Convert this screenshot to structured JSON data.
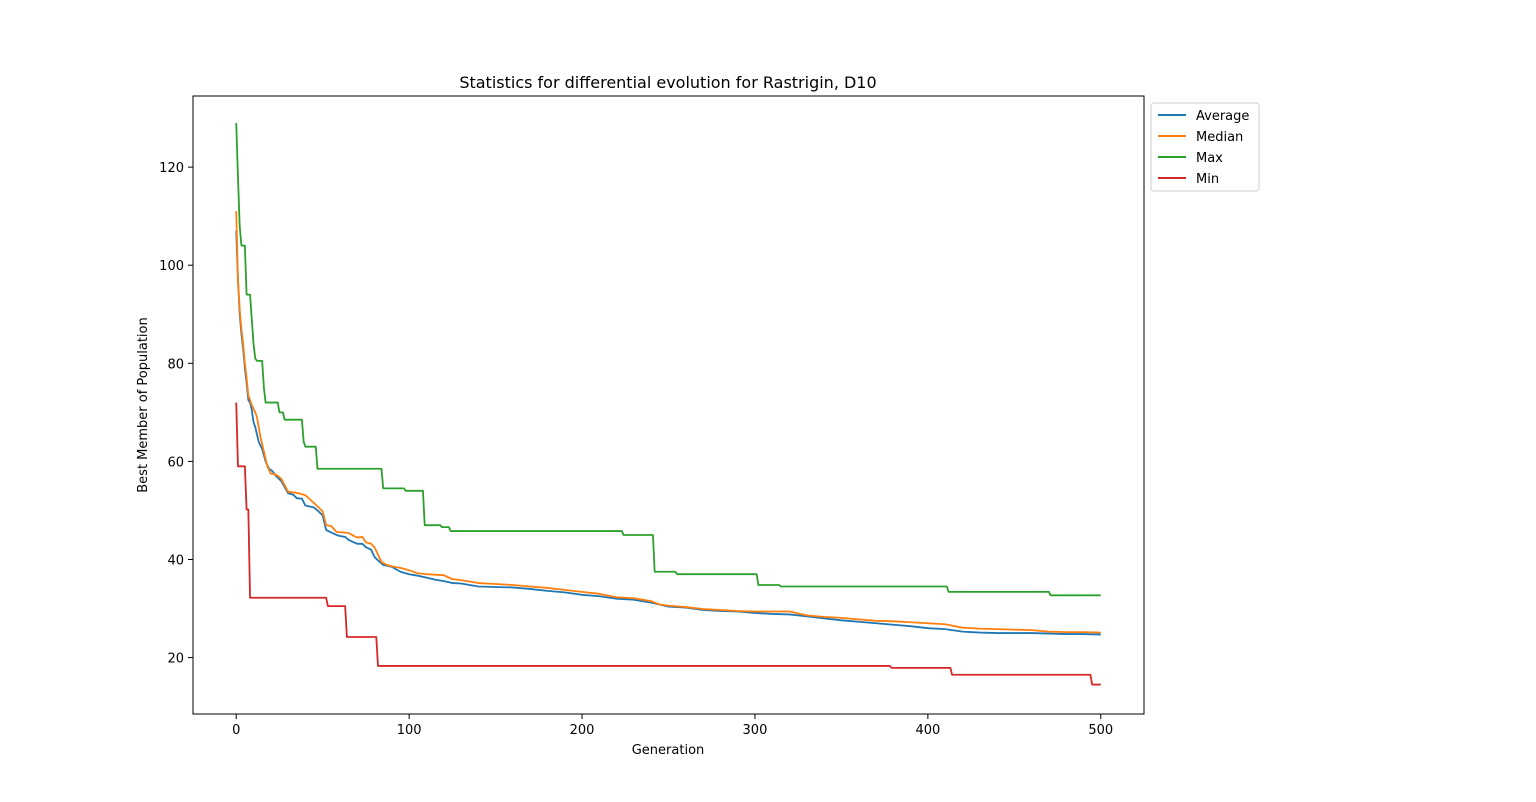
{
  "chart_data": {
    "type": "line",
    "title": "Statistics for differential evolution for Rastrigin, D10",
    "xlabel": "Generation",
    "ylabel": "Best Member of Population",
    "xlim": [
      -25,
      525
    ],
    "ylim": [
      8.5,
      134.5
    ],
    "xticks": [
      0,
      100,
      200,
      300,
      400,
      500
    ],
    "yticks": [
      20,
      40,
      60,
      80,
      100,
      120
    ],
    "grid": false,
    "legend_position": "outside upper right",
    "series": [
      {
        "name": "Average",
        "color": "#1f77b4",
        "points": [
          [
            0,
            107
          ],
          [
            1,
            97
          ],
          [
            2,
            90
          ],
          [
            3,
            86
          ],
          [
            4,
            83
          ],
          [
            5,
            79
          ],
          [
            6,
            76
          ],
          [
            7,
            72.5
          ],
          [
            8,
            72
          ],
          [
            9,
            70.5
          ],
          [
            10,
            68
          ],
          [
            11,
            67
          ],
          [
            13,
            64
          ],
          [
            15,
            62.5
          ],
          [
            17,
            60
          ],
          [
            19,
            58.5
          ],
          [
            21,
            58
          ],
          [
            23,
            57
          ],
          [
            26,
            56
          ],
          [
            28,
            54.8
          ],
          [
            30,
            53.5
          ],
          [
            33,
            53.2
          ],
          [
            35,
            52.5
          ],
          [
            38,
            52.4
          ],
          [
            40,
            51
          ],
          [
            45,
            50.6
          ],
          [
            47,
            50
          ],
          [
            50,
            49
          ],
          [
            52,
            46
          ],
          [
            55,
            45.5
          ],
          [
            58,
            45
          ],
          [
            60,
            44.8
          ],
          [
            63,
            44.6
          ],
          [
            65,
            44
          ],
          [
            68,
            43.5
          ],
          [
            70,
            43.2
          ],
          [
            73,
            43.2
          ],
          [
            75,
            42.5
          ],
          [
            78,
            42
          ],
          [
            80,
            40.5
          ],
          [
            83,
            39.5
          ],
          [
            85,
            38.9
          ],
          [
            90,
            38.5
          ],
          [
            95,
            37.5
          ],
          [
            100,
            37
          ],
          [
            105,
            36.7
          ],
          [
            110,
            36.3
          ],
          [
            115,
            35.9
          ],
          [
            120,
            35.6
          ],
          [
            125,
            35.2
          ],
          [
            130,
            35.1
          ],
          [
            140,
            34.5
          ],
          [
            150,
            34.4
          ],
          [
            160,
            34.3
          ],
          [
            170,
            34
          ],
          [
            180,
            33.6
          ],
          [
            190,
            33.3
          ],
          [
            200,
            32.8
          ],
          [
            210,
            32.5
          ],
          [
            220,
            32
          ],
          [
            230,
            31.8
          ],
          [
            240,
            31.2
          ],
          [
            250,
            30.4
          ],
          [
            260,
            30.2
          ],
          [
            270,
            29.7
          ],
          [
            280,
            29.5
          ],
          [
            290,
            29.4
          ],
          [
            300,
            29.1
          ],
          [
            310,
            28.9
          ],
          [
            320,
            28.8
          ],
          [
            330,
            28.4
          ],
          [
            340,
            28
          ],
          [
            350,
            27.6
          ],
          [
            360,
            27.3
          ],
          [
            370,
            27
          ],
          [
            380,
            26.7
          ],
          [
            390,
            26.4
          ],
          [
            400,
            26
          ],
          [
            410,
            25.8
          ],
          [
            420,
            25.3
          ],
          [
            430,
            25.1
          ],
          [
            440,
            25
          ],
          [
            450,
            25
          ],
          [
            460,
            25
          ],
          [
            470,
            24.9
          ],
          [
            480,
            24.8
          ],
          [
            490,
            24.8
          ],
          [
            500,
            24.7
          ]
        ]
      },
      {
        "name": "Median",
        "color": "#ff7f0e",
        "points": [
          [
            0,
            111
          ],
          [
            1,
            97
          ],
          [
            2,
            91
          ],
          [
            3,
            87
          ],
          [
            4,
            84
          ],
          [
            5,
            80
          ],
          [
            6,
            77
          ],
          [
            7,
            73.5
          ],
          [
            8,
            72.5
          ],
          [
            9,
            71.5
          ],
          [
            11,
            70
          ],
          [
            12,
            69
          ],
          [
            14,
            65
          ],
          [
            16,
            62
          ],
          [
            18,
            59
          ],
          [
            20,
            57.5
          ],
          [
            23,
            57.3
          ],
          [
            26,
            56.5
          ],
          [
            29,
            54.5
          ],
          [
            30,
            53.8
          ],
          [
            35,
            53.6
          ],
          [
            40,
            53.1
          ],
          [
            45,
            51.5
          ],
          [
            48,
            50.5
          ],
          [
            50,
            49.8
          ],
          [
            52,
            47
          ],
          [
            55,
            46.8
          ],
          [
            58,
            45.6
          ],
          [
            62,
            45.5
          ],
          [
            65,
            45.4
          ],
          [
            68,
            44.8
          ],
          [
            70,
            44.5
          ],
          [
            73,
            44.6
          ],
          [
            75,
            43.5
          ],
          [
            78,
            43.2
          ],
          [
            80,
            42.5
          ],
          [
            82,
            41
          ],
          [
            84,
            39.5
          ],
          [
            87,
            38.9
          ],
          [
            90,
            38.6
          ],
          [
            95,
            38.3
          ],
          [
            100,
            37.8
          ],
          [
            105,
            37.2
          ],
          [
            110,
            37
          ],
          [
            120,
            36.8
          ],
          [
            125,
            36
          ],
          [
            130,
            35.8
          ],
          [
            140,
            35.2
          ],
          [
            150,
            35
          ],
          [
            160,
            34.8
          ],
          [
            170,
            34.5
          ],
          [
            180,
            34.2
          ],
          [
            190,
            33.8
          ],
          [
            200,
            33.4
          ],
          [
            210,
            33
          ],
          [
            220,
            32.3
          ],
          [
            230,
            32.1
          ],
          [
            240,
            31.5
          ],
          [
            245,
            30.8
          ],
          [
            250,
            30.6
          ],
          [
            260,
            30.3
          ],
          [
            270,
            29.9
          ],
          [
            280,
            29.7
          ],
          [
            290,
            29.5
          ],
          [
            300,
            29.4
          ],
          [
            310,
            29.4
          ],
          [
            320,
            29.4
          ],
          [
            330,
            28.6
          ],
          [
            340,
            28.3
          ],
          [
            350,
            28.1
          ],
          [
            360,
            27.8
          ],
          [
            370,
            27.5
          ],
          [
            380,
            27.4
          ],
          [
            390,
            27.2
          ],
          [
            400,
            27
          ],
          [
            410,
            26.8
          ],
          [
            420,
            26.1
          ],
          [
            430,
            25.9
          ],
          [
            440,
            25.8
          ],
          [
            450,
            25.7
          ],
          [
            460,
            25.6
          ],
          [
            470,
            25.3
          ],
          [
            480,
            25.2
          ],
          [
            490,
            25.2
          ],
          [
            500,
            25.1
          ]
        ]
      },
      {
        "name": "Max",
        "color": "#2ca02c",
        "points": [
          [
            0,
            129
          ],
          [
            1,
            118
          ],
          [
            2,
            108
          ],
          [
            3,
            104
          ],
          [
            5,
            104
          ],
          [
            6,
            94
          ],
          [
            8,
            94
          ],
          [
            9,
            89
          ],
          [
            10,
            84
          ],
          [
            11,
            81
          ],
          [
            12,
            80.5
          ],
          [
            15,
            80.5
          ],
          [
            16,
            75
          ],
          [
            17,
            72
          ],
          [
            24,
            72
          ],
          [
            25,
            70
          ],
          [
            27,
            70
          ],
          [
            28,
            68.5
          ],
          [
            38,
            68.5
          ],
          [
            39,
            64
          ],
          [
            40,
            63
          ],
          [
            46,
            63
          ],
          [
            47,
            58.5
          ],
          [
            84,
            58.5
          ],
          [
            85,
            54.5
          ],
          [
            97,
            54.5
          ],
          [
            98,
            54
          ],
          [
            108,
            54
          ],
          [
            109,
            47
          ],
          [
            118,
            47
          ],
          [
            119,
            46.6
          ],
          [
            123,
            46.6
          ],
          [
            124,
            45.8
          ],
          [
            223,
            45.8
          ],
          [
            224,
            45
          ],
          [
            241,
            45
          ],
          [
            242,
            37.5
          ],
          [
            254,
            37.5
          ],
          [
            255,
            37
          ],
          [
            301,
            37
          ],
          [
            302,
            34.8
          ],
          [
            314,
            34.8
          ],
          [
            315,
            34.5
          ],
          [
            411,
            34.5
          ],
          [
            412,
            33.4
          ],
          [
            470,
            33.4
          ],
          [
            471,
            32.7
          ],
          [
            500,
            32.7
          ]
        ]
      },
      {
        "name": "Min",
        "color": "#d62728",
        "points": [
          [
            0,
            72
          ],
          [
            1,
            59
          ],
          [
            5,
            59
          ],
          [
            6,
            50.2
          ],
          [
            7,
            50.2
          ],
          [
            8,
            32.2
          ],
          [
            52,
            32.2
          ],
          [
            53,
            30.5
          ],
          [
            63,
            30.5
          ],
          [
            64,
            24.2
          ],
          [
            81,
            24.2
          ],
          [
            82,
            18.3
          ],
          [
            378,
            18.3
          ],
          [
            379,
            17.9
          ],
          [
            413,
            17.9
          ],
          [
            414,
            16.5
          ],
          [
            494,
            16.5
          ],
          [
            495,
            14.5
          ],
          [
            500,
            14.5
          ]
        ]
      }
    ]
  }
}
